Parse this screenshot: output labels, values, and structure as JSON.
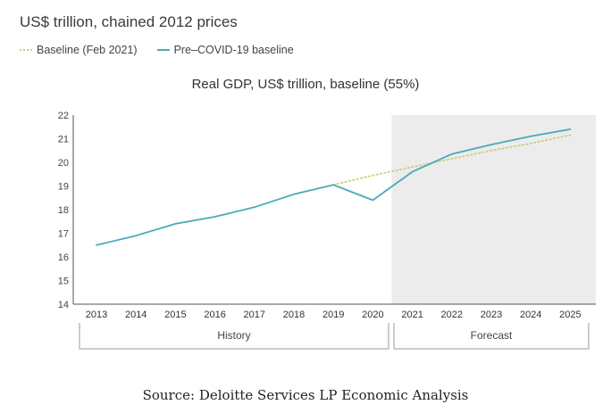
{
  "header": {
    "units": "US$ trillion, chained 2012 prices"
  },
  "chart_data": {
    "type": "line",
    "title": "Real GDP, US$ trillion, baseline (55%)",
    "xlabel": "",
    "ylabel": "",
    "ylim": [
      14,
      22
    ],
    "yticks": [
      14,
      15,
      16,
      17,
      18,
      19,
      20,
      21,
      22
    ],
    "x": [
      "2013",
      "2014",
      "2015",
      "2016",
      "2017",
      "2018",
      "2019",
      "2020",
      "2021",
      "2022",
      "2023",
      "2024",
      "2025"
    ],
    "series": [
      {
        "name": "Baseline (Feb 2021)",
        "color": "#c9d17a",
        "style": "dotted",
        "values": [
          null,
          null,
          null,
          null,
          null,
          null,
          19.05,
          19.45,
          19.8,
          20.15,
          20.5,
          20.8,
          21.15
        ]
      },
      {
        "name": "Pre–COVID-19 baseline",
        "color": "#4aaab8",
        "style": "solid",
        "values": [
          16.5,
          16.9,
          17.4,
          17.7,
          18.1,
          18.65,
          19.05,
          18.4,
          19.6,
          20.35,
          20.75,
          21.1,
          21.4
        ]
      }
    ],
    "periods": [
      {
        "label": "History",
        "from": "2013",
        "to": "2020"
      },
      {
        "label": "Forecast",
        "from": "2021",
        "to": "2025"
      }
    ],
    "forecast_shading_color": "#ececec",
    "legend_position": "top-left",
    "grid": false
  },
  "footer": {
    "source": "Source: Deloitte Services LP Economic Analysis"
  }
}
